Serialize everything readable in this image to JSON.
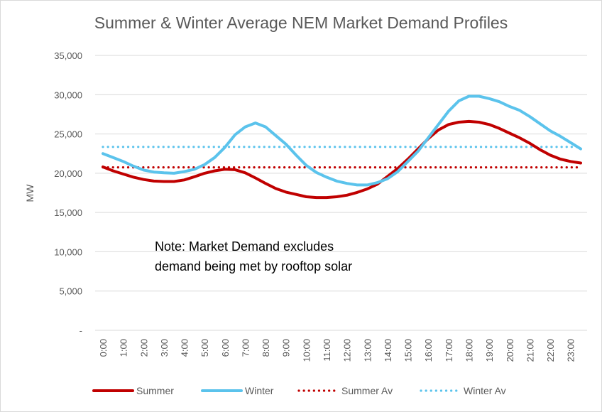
{
  "chart_data": {
    "type": "line",
    "title": "Summer & Winter Average NEM Market Demand Profiles",
    "ylabel": "MW",
    "xlabel": "",
    "ylim": [
      0,
      35000
    ],
    "y_ticks": [
      0,
      5000,
      10000,
      15000,
      20000,
      25000,
      30000,
      35000
    ],
    "y_tick_labels": [
      "-",
      "5,000",
      "10,000",
      "15,000",
      "20,000",
      "25,000",
      "30,000",
      "35,000"
    ],
    "grid": true,
    "legend_position": "bottom",
    "x_labels": [
      "0:00",
      "1:00",
      "2:00",
      "3:00",
      "4:00",
      "5:00",
      "6:00",
      "7:00",
      "8:00",
      "9:00",
      "10:00",
      "11:00",
      "12:00",
      "13:00",
      "14:00",
      "15:00",
      "16:00",
      "17:00",
      "18:00",
      "19:00",
      "20:00",
      "21:00",
      "22:00",
      "23:00"
    ],
    "x": [
      0,
      0.5,
      1,
      1.5,
      2,
      2.5,
      3,
      3.5,
      4,
      4.5,
      5,
      5.5,
      6,
      6.5,
      7,
      7.5,
      8,
      8.5,
      9,
      9.5,
      10,
      10.5,
      11,
      11.5,
      12,
      12.5,
      13,
      13.5,
      14,
      14.5,
      15,
      15.5,
      16,
      16.5,
      17,
      17.5,
      18,
      18.5,
      19,
      19.5,
      20,
      20.5,
      21,
      21.5,
      22,
      22.5,
      23,
      23.5
    ],
    "series": [
      {
        "name": "Summer",
        "color": "#c00000",
        "style": "solid",
        "values": [
          20800,
          20300,
          19900,
          19500,
          19200,
          19000,
          18950,
          18950,
          19150,
          19550,
          20000,
          20300,
          20500,
          20450,
          20050,
          19400,
          18700,
          18050,
          17600,
          17300,
          17000,
          16900,
          16900,
          17000,
          17200,
          17550,
          18000,
          18600,
          19600,
          20600,
          21800,
          23100,
          24400,
          25500,
          26200,
          26500,
          26600,
          26500,
          26200,
          25700,
          25100,
          24500,
          23800,
          23000,
          22300,
          21800,
          21500,
          21300
        ]
      },
      {
        "name": "Winter",
        "color": "#5bc3ec",
        "style": "solid",
        "values": [
          22500,
          22000,
          21500,
          20900,
          20400,
          20150,
          20050,
          20000,
          20200,
          20500,
          21100,
          22000,
          23300,
          24900,
          25900,
          26400,
          25900,
          24800,
          23700,
          22300,
          21000,
          20100,
          19500,
          19000,
          18700,
          18500,
          18500,
          18800,
          19300,
          20200,
          21500,
          22800,
          24500,
          26200,
          27900,
          29200,
          29800,
          29800,
          29500,
          29100,
          28500,
          28000,
          27200,
          26300,
          25400,
          24700,
          23900,
          23100
        ]
      },
      {
        "name": "Summer Av",
        "color": "#c00000",
        "style": "dotted",
        "values": [
          20750,
          20750,
          20750,
          20750,
          20750,
          20750,
          20750,
          20750,
          20750,
          20750,
          20750,
          20750,
          20750,
          20750,
          20750,
          20750,
          20750,
          20750,
          20750,
          20750,
          20750,
          20750,
          20750,
          20750,
          20750,
          20750,
          20750,
          20750,
          20750,
          20750,
          20750,
          20750,
          20750,
          20750,
          20750,
          20750,
          20750,
          20750,
          20750,
          20750,
          20750,
          20750,
          20750,
          20750,
          20750,
          20750,
          20750,
          20750
        ]
      },
      {
        "name": "Winter Av",
        "color": "#5bc3ec",
        "style": "dotted",
        "values": [
          23350,
          23350,
          23350,
          23350,
          23350,
          23350,
          23350,
          23350,
          23350,
          23350,
          23350,
          23350,
          23350,
          23350,
          23350,
          23350,
          23350,
          23350,
          23350,
          23350,
          23350,
          23350,
          23350,
          23350,
          23350,
          23350,
          23350,
          23350,
          23350,
          23350,
          23350,
          23350,
          23350,
          23350,
          23350,
          23350,
          23350,
          23350,
          23350,
          23350,
          23350,
          23350,
          23350,
          23350,
          23350,
          23350,
          23350,
          23350
        ]
      }
    ],
    "annotation": [
      "Note: Market Demand excludes",
      "demand being met by rooftop solar"
    ]
  }
}
